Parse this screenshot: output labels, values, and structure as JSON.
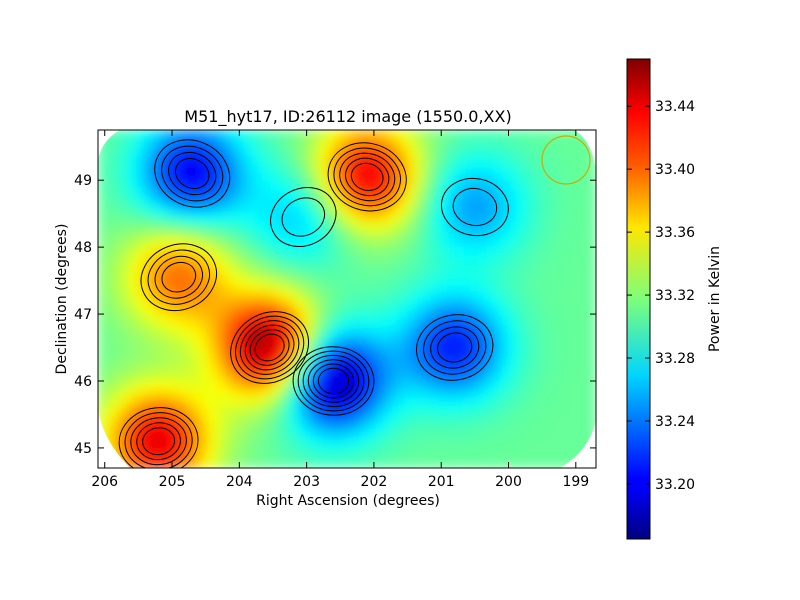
{
  "chart_data": {
    "type": "heatmap",
    "title": "M51_hyt17, ID:26112 image (1550.0,XX)",
    "xlabel": "Right Ascension (degrees)",
    "ylabel": "Declination (degrees)",
    "xlim": [
      206.1,
      198.7
    ],
    "ylim": [
      44.7,
      49.75
    ],
    "x_ticks": [
      206,
      205,
      204,
      203,
      202,
      201,
      200,
      199
    ],
    "y_ticks": [
      45,
      46,
      47,
      48,
      49
    ],
    "colorbar": {
      "label": "Power in Kelvin",
      "range": [
        33.165,
        33.47
      ],
      "ticks": [
        "33.20",
        "33.24",
        "33.28",
        "33.32",
        "33.36",
        "33.40",
        "33.44"
      ],
      "tick_values": [
        33.2,
        33.24,
        33.28,
        33.32,
        33.36,
        33.4,
        33.44
      ],
      "colormap": "jet"
    },
    "contour_color": "#000000",
    "beam_circle_color": "#ccaa00",
    "features": [
      {
        "kind": "peak",
        "ra": 203.55,
        "dec": 46.5,
        "value": 33.47
      },
      {
        "kind": "peak",
        "ra": 205.2,
        "dec": 45.1,
        "value": 33.44
      },
      {
        "kind": "peak",
        "ra": 202.1,
        "dec": 49.05,
        "value": 33.44
      },
      {
        "kind": "peak",
        "ra": 204.9,
        "dec": 47.55,
        "value": 33.4
      },
      {
        "kind": "trough",
        "ra": 202.6,
        "dec": 46.0,
        "value": 33.17
      },
      {
        "kind": "trough",
        "ra": 204.7,
        "dec": 49.1,
        "value": 33.2
      },
      {
        "kind": "trough",
        "ra": 200.8,
        "dec": 46.5,
        "value": 33.21
      },
      {
        "kind": "trough",
        "ra": 200.5,
        "dec": 48.6,
        "value": 33.25
      },
      {
        "kind": "trough",
        "ra": 203.05,
        "dec": 48.45,
        "value": 33.26
      }
    ]
  }
}
